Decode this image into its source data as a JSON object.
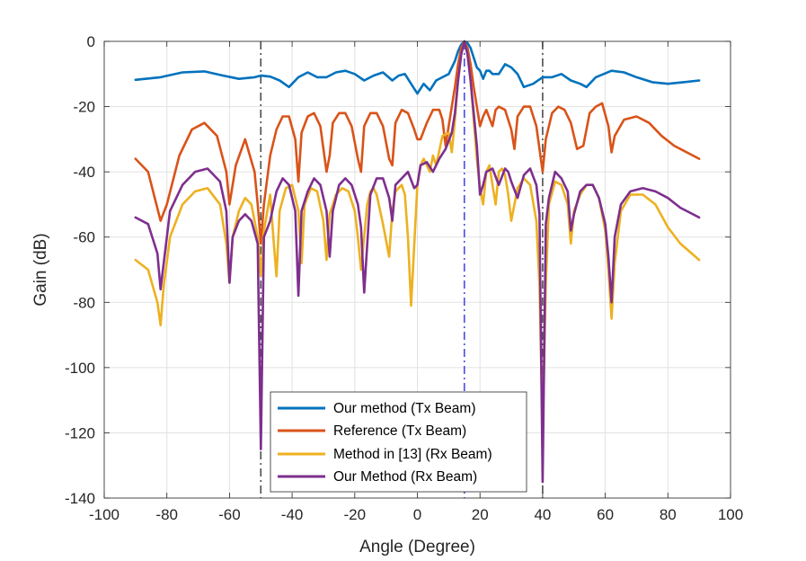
{
  "chart_data": {
    "type": "line",
    "title": "",
    "xlabel": "Angle (Degree)",
    "ylabel": "Gain (dB)",
    "xlim": [
      -100,
      100
    ],
    "ylim": [
      -140,
      0
    ],
    "xticks": [
      -100,
      -80,
      -60,
      -40,
      -20,
      0,
      20,
      40,
      60,
      80,
      100
    ],
    "yticks": [
      0,
      -20,
      -40,
      -60,
      -80,
      -100,
      -120,
      -140
    ],
    "xtick_labels": [
      "-100",
      "-80",
      "-60",
      "-40",
      "-20",
      "0",
      "20",
      "40",
      "60",
      "80",
      "100"
    ],
    "ytick_labels": [
      "0",
      "-20",
      "-40",
      "-60",
      "-80",
      "-100",
      "-120",
      "-140"
    ],
    "grid": true,
    "legend_position": "bottom-center",
    "vertical_lines": [
      {
        "x": -50,
        "style": "dash-dot",
        "color": "#4d4d4d"
      },
      {
        "x": 15,
        "style": "dash-dot",
        "color": "#4a4ae6"
      },
      {
        "x": 40,
        "style": "dash-dot",
        "color": "#4d4d4d"
      }
    ],
    "series": [
      {
        "name": "Our method (Tx Beam)",
        "color": "#0072BD",
        "x": [
          -90,
          -82,
          -75,
          -68,
          -62,
          -57,
          -52,
          -50,
          -47,
          -44,
          -41,
          -38,
          -35,
          -32,
          -29,
          -26,
          -23,
          -20,
          -17,
          -14,
          -11,
          -8,
          -6,
          -4,
          -2,
          0,
          2,
          4,
          6,
          8,
          10,
          12,
          13,
          14,
          15,
          16,
          17,
          18,
          19,
          20,
          21,
          22,
          23,
          24,
          26,
          28,
          30,
          32,
          34,
          37,
          40,
          43,
          46,
          49,
          52,
          54,
          57,
          62,
          66,
          70,
          75,
          80,
          85,
          90
        ],
        "values": [
          -11.8,
          -11,
          -9.5,
          -9.2,
          -10.5,
          -11.5,
          -11,
          -10.5,
          -10.8,
          -12,
          -14,
          -11,
          -9.5,
          -11,
          -11,
          -9.5,
          -9,
          -10,
          -12,
          -10.5,
          -9.5,
          -12,
          -10.5,
          -10,
          -13,
          -16,
          -13,
          -15,
          -12,
          -11,
          -10,
          -6,
          -3,
          -1,
          0,
          -0.5,
          -2,
          -5,
          -8,
          -9,
          -11.5,
          -9,
          -9,
          -10,
          -10,
          -7,
          -8,
          -10,
          -14,
          -13,
          -11,
          -11,
          -10,
          -12,
          -13,
          -14,
          -11,
          -9,
          -9.5,
          -11,
          -12.5,
          -13,
          -12.5,
          -12
        ]
      },
      {
        "name": "Reference (Tx Beam)",
        "color": "#D95319",
        "x": [
          -90,
          -86,
          -82,
          -80,
          -76,
          -72,
          -68,
          -64,
          -61,
          -60,
          -58,
          -55,
          -52,
          -51,
          -50,
          -49,
          -47,
          -45,
          -43,
          -41,
          -39,
          -38,
          -37,
          -35,
          -33,
          -31,
          -29,
          -28,
          -27,
          -25,
          -23,
          -21,
          -19,
          -18,
          -17,
          -15,
          -13,
          -11,
          -9,
          -8,
          -7,
          -5,
          -3,
          -1,
          0,
          1,
          3,
          5,
          7,
          8,
          9,
          11,
          12,
          13,
          14,
          15,
          16,
          17,
          18,
          19,
          20,
          21,
          22,
          24,
          25,
          26,
          28,
          30,
          31,
          32,
          34,
          36,
          38,
          40,
          41,
          43,
          45,
          47,
          49,
          51,
          53,
          55,
          57,
          59,
          61,
          62,
          63,
          66,
          70,
          74,
          78,
          82,
          86,
          90
        ],
        "values": [
          -36,
          -40,
          -55,
          -50,
          -35,
          -27,
          -25,
          -29,
          -40,
          -50,
          -38,
          -30,
          -40,
          -50,
          -62,
          -50,
          -35,
          -27,
          -23,
          -23,
          -30,
          -43,
          -28,
          -23,
          -22,
          -26,
          -40,
          -35,
          -25,
          -22,
          -22,
          -26,
          -36,
          -40,
          -26,
          -22,
          -22,
          -26,
          -36,
          -38,
          -25,
          -21,
          -22,
          -27,
          -30,
          -30,
          -25,
          -21,
          -21,
          -24,
          -32,
          -20,
          -14,
          -7,
          -2,
          0,
          -2,
          -7,
          -14,
          -20,
          -26,
          -23,
          -21,
          -26,
          -21,
          -20,
          -21,
          -27,
          -33,
          -23,
          -20,
          -20,
          -26,
          -40,
          -30,
          -22,
          -20,
          -21,
          -25,
          -33,
          -32,
          -22,
          -20,
          -19,
          -26,
          -34,
          -29,
          -24,
          -23,
          -25,
          -29,
          -32,
          -34,
          -36
        ]
      },
      {
        "name": "Method in [13] (Rx Beam)",
        "color": "#EDB120",
        "x": [
          -90,
          -86,
          -83,
          -82,
          -81,
          -79,
          -75,
          -71,
          -67,
          -63,
          -61,
          -60,
          -59,
          -57,
          -55,
          -53,
          -51,
          -50,
          -49,
          -47,
          -46,
          -45,
          -44,
          -42,
          -40,
          -38,
          -37,
          -36,
          -34,
          -32,
          -30,
          -29,
          -28,
          -26,
          -24,
          -22,
          -20,
          -19,
          -18,
          -16,
          -15,
          -14,
          -13,
          -11,
          -9,
          -8,
          -7,
          -5,
          -4,
          -3,
          -2,
          0,
          1,
          2,
          4,
          5,
          6,
          8,
          10,
          11,
          12,
          13,
          14,
          15,
          16,
          17,
          18,
          19,
          20,
          21,
          22,
          23,
          24,
          25,
          26,
          27,
          28,
          29,
          30,
          32,
          34,
          36,
          38,
          39,
          40,
          41,
          42,
          44,
          46,
          48,
          49,
          50,
          52,
          54,
          56,
          58,
          60,
          61,
          62,
          63,
          65,
          68,
          72,
          76,
          80,
          84,
          90
        ],
        "values": [
          -67,
          -70,
          -80,
          -87,
          -75,
          -60,
          -50,
          -46,
          -45,
          -50,
          -62,
          -74,
          -60,
          -52,
          -48,
          -50,
          -60,
          -72,
          -58,
          -47,
          -60,
          -72,
          -52,
          -45,
          -44,
          -52,
          -68,
          -50,
          -45,
          -46,
          -55,
          -67,
          -53,
          -47,
          -45,
          -46,
          -52,
          -60,
          -70,
          -50,
          -46,
          -45,
          -47,
          -56,
          -66,
          -52,
          -46,
          -44,
          -47,
          -60,
          -81,
          -44,
          -38,
          -36,
          -40,
          -35,
          -38,
          -29,
          -28,
          -34,
          -24,
          -12,
          -4,
          0,
          -4,
          -12,
          -24,
          -36,
          -45,
          -50,
          -40,
          -38,
          -44,
          -50,
          -40,
          -39,
          -41,
          -47,
          -55,
          -45,
          -42,
          -44,
          -55,
          -75,
          -120,
          -75,
          -50,
          -43,
          -44,
          -50,
          -62,
          -52,
          -47,
          -44,
          -44,
          -48,
          -58,
          -70,
          -85,
          -68,
          -52,
          -47,
          -47,
          -50,
          -57,
          -62,
          -67
        ]
      },
      {
        "name": "Our Method (Rx Beam)",
        "color": "#7E2F8E",
        "x": [
          -90,
          -86,
          -83,
          -82,
          -81,
          -79,
          -75,
          -71,
          -67,
          -63,
          -61,
          -60,
          -59,
          -57,
          -55,
          -53,
          -51,
          -50,
          -49,
          -47,
          -45,
          -43,
          -41,
          -39,
          -38,
          -37,
          -35,
          -33,
          -31,
          -29,
          -28,
          -27,
          -25,
          -23,
          -21,
          -19,
          -18,
          -17,
          -15,
          -13,
          -11,
          -9,
          -8,
          -7,
          -5,
          -3,
          -1,
          0,
          1,
          3,
          5,
          7,
          9,
          11,
          12,
          13,
          14,
          15,
          16,
          17,
          18,
          19,
          20,
          21,
          22,
          24,
          26,
          28,
          29,
          30,
          32,
          34,
          36,
          38,
          39,
          40,
          41,
          42,
          44,
          46,
          48,
          49,
          50,
          52,
          54,
          56,
          58,
          60,
          61,
          62,
          63,
          65,
          68,
          72,
          76,
          80,
          84,
          90
        ],
        "values": [
          -54,
          -56,
          -65,
          -76,
          -68,
          -52,
          -44,
          -40,
          -39,
          -43,
          -52,
          -74,
          -60,
          -55,
          -53,
          -55,
          -62,
          -125,
          -60,
          -55,
          -46,
          -42,
          -44,
          -52,
          -78,
          -52,
          -46,
          -42,
          -44,
          -52,
          -66,
          -52,
          -44,
          -42,
          -44,
          -50,
          -57,
          -77,
          -47,
          -42,
          -42,
          -48,
          -55,
          -44,
          -42,
          -40,
          -45,
          -44,
          -38,
          -37,
          -40,
          -36,
          -33,
          -28,
          -22,
          -12,
          -4,
          0,
          -4,
          -12,
          -22,
          -32,
          -47,
          -44,
          -40,
          -39,
          -44,
          -39,
          -40,
          -43,
          -48,
          -41,
          -39,
          -44,
          -53,
          -135,
          -56,
          -48,
          -40,
          -42,
          -46,
          -58,
          -53,
          -46,
          -44,
          -44,
          -48,
          -56,
          -66,
          -80,
          -60,
          -50,
          -46,
          -45,
          -46,
          -48,
          -51,
          -54
        ]
      }
    ]
  }
}
